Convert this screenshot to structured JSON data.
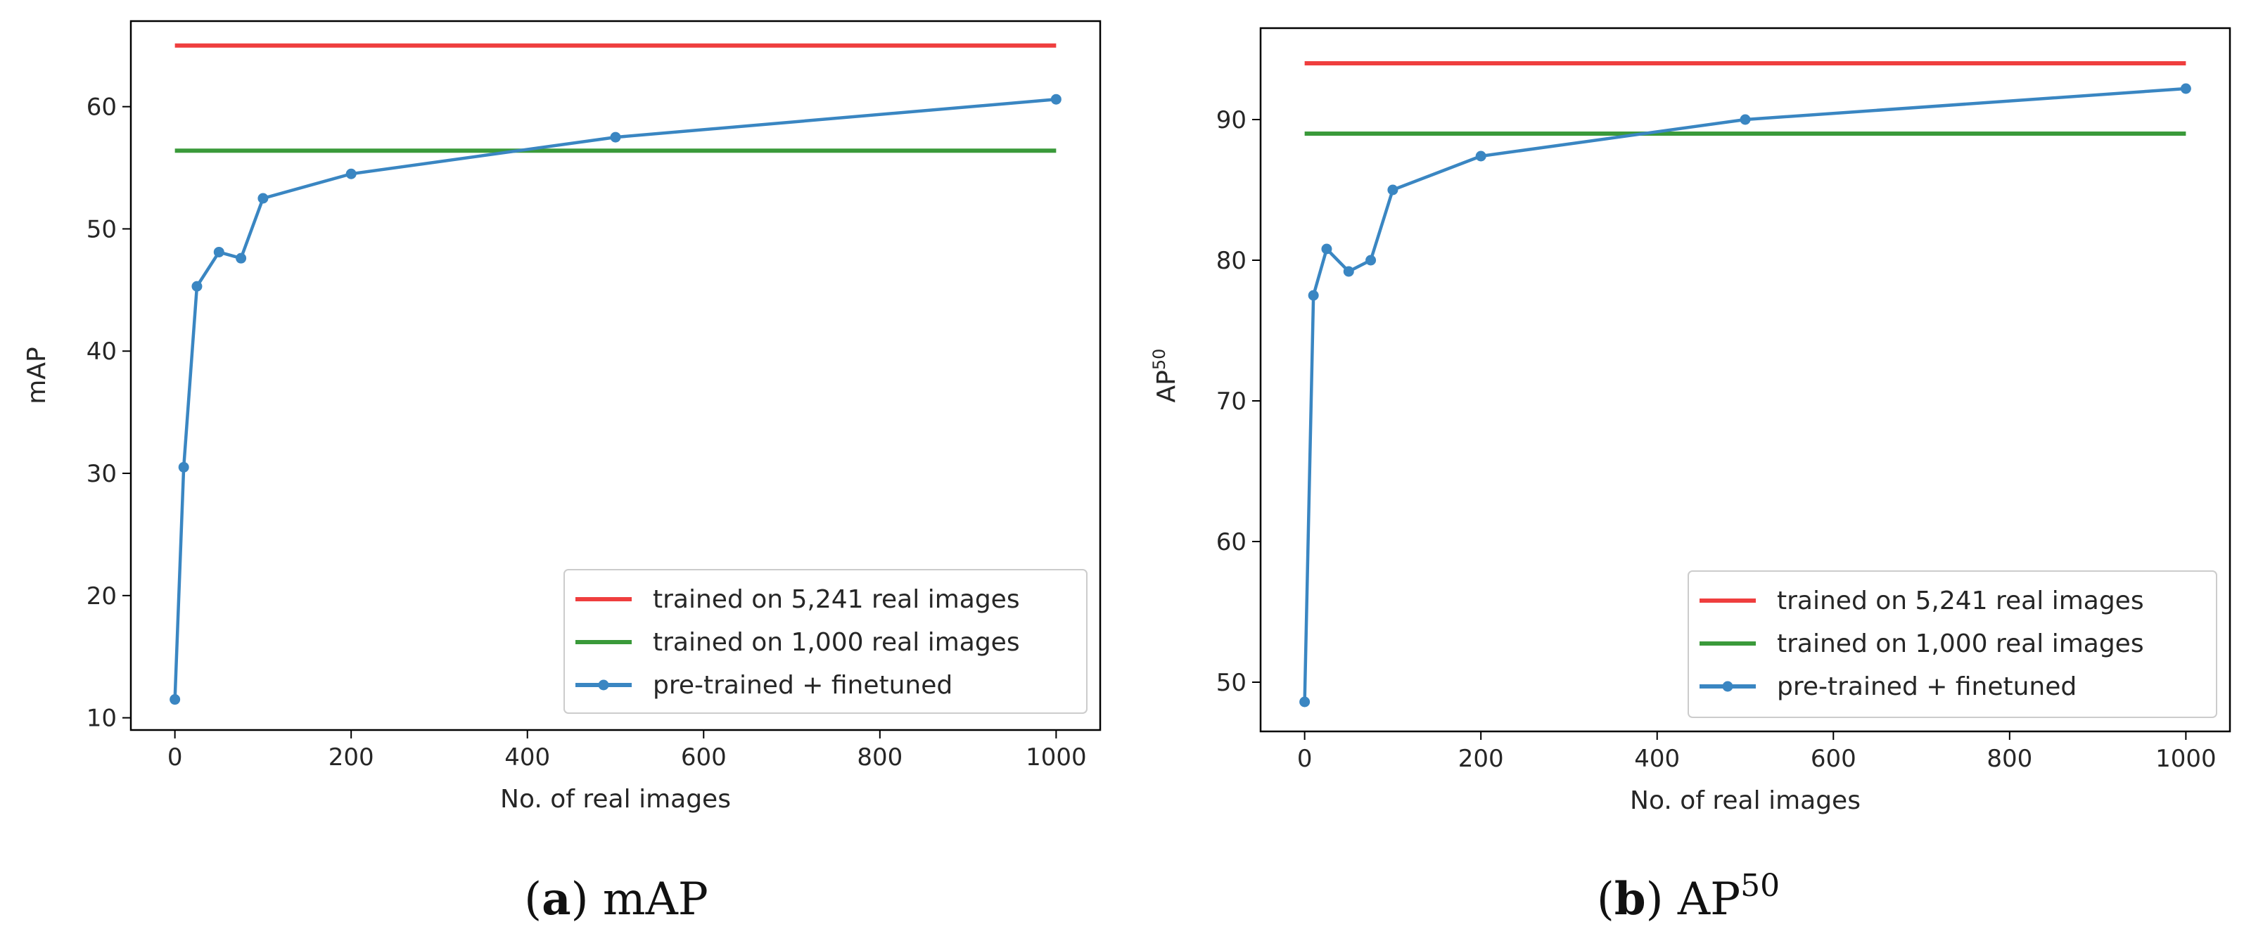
{
  "chart_data": [
    {
      "type": "line",
      "caption": {
        "letter": "a",
        "text": "mAP",
        "sup": ""
      },
      "xlabel": "No. of real images",
      "ylabel": "mAP",
      "ylabel_sup": "",
      "xlim": [
        -50,
        1050
      ],
      "ylim": [
        9,
        67
      ],
      "xticks": [
        0,
        200,
        400,
        600,
        800,
        1000
      ],
      "yticks": [
        10,
        20,
        30,
        40,
        50,
        60
      ],
      "grid": false,
      "legend_position": "lower-right",
      "series": [
        {
          "name": "trained on 5,241 real images",
          "color": "#ef3e3e",
          "style": "line",
          "x": [
            0,
            1000
          ],
          "y": [
            65.0,
            65.0
          ]
        },
        {
          "name": "trained on 1,000 real images",
          "color": "#3a9a3a",
          "style": "line",
          "x": [
            0,
            1000
          ],
          "y": [
            56.4,
            56.4
          ]
        },
        {
          "name": "pre-trained + finetuned",
          "color": "#3a86c2",
          "style": "line-marker",
          "x": [
            0,
            10,
            25,
            50,
            75,
            100,
            200,
            500,
            1000
          ],
          "y": [
            11.5,
            30.5,
            45.3,
            48.1,
            47.6,
            52.5,
            54.5,
            57.5,
            60.6
          ]
        }
      ]
    },
    {
      "type": "line",
      "caption": {
        "letter": "b",
        "text": "AP",
        "sup": "50"
      },
      "xlabel": "No. of real images",
      "ylabel": "AP",
      "ylabel_sup": "50",
      "xlim": [
        -50,
        1050
      ],
      "ylim": [
        46.5,
        96.5
      ],
      "xticks": [
        0,
        200,
        400,
        600,
        800,
        1000
      ],
      "yticks": [
        50,
        60,
        70,
        80,
        90
      ],
      "grid": false,
      "legend_position": "lower-right",
      "series": [
        {
          "name": "trained on 5,241 real images",
          "color": "#ef3e3e",
          "style": "line",
          "x": [
            0,
            1000
          ],
          "y": [
            94.0,
            94.0
          ]
        },
        {
          "name": "trained on 1,000 real images",
          "color": "#3a9a3a",
          "style": "line",
          "x": [
            0,
            1000
          ],
          "y": [
            89.0,
            89.0
          ]
        },
        {
          "name": "pre-trained + finetuned",
          "color": "#3a86c2",
          "style": "line-marker",
          "x": [
            0,
            10,
            25,
            50,
            75,
            100,
            200,
            500,
            1000
          ],
          "y": [
            48.6,
            77.5,
            80.8,
            79.2,
            80.0,
            85.0,
            87.4,
            90.0,
            92.2
          ]
        }
      ]
    }
  ]
}
